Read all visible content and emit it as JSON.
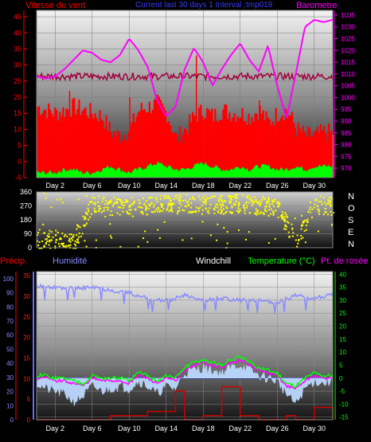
{
  "colors": {
    "wind": "#ff0000",
    "gust": "#ff0000",
    "baro": "#ff00ff",
    "dir": "#ffff00",
    "humidity": "#8a8aff",
    "precip": "#cc0000",
    "temp": "#00ff00",
    "dew": "#ff00ff",
    "windchill": "#ffffff",
    "winddir_ref": "#a0003a"
  },
  "chart_data": [
    {
      "type": "area",
      "panel": "wind_baro",
      "title": "Current last 30 days 1 Interval ;tmp018",
      "left_axis_label": "Vitesse du vent",
      "right_axis_label": "Barometre",
      "x_ticks": [
        "Day 2",
        "Day 6",
        "Day 10",
        "Day 14",
        "Day 18",
        "Day 22",
        "Day 26",
        "Day 30"
      ],
      "left_ticks": [
        -5,
        0,
        5,
        10,
        15,
        20,
        25,
        30,
        35,
        40,
        45
      ],
      "right_ticks": [
        970,
        975,
        980,
        985,
        990,
        995,
        1000,
        1005,
        1010,
        1015,
        1020,
        1025,
        1030,
        1035
      ],
      "ylim_left": [
        -5,
        47
      ],
      "ylim_right": [
        966,
        1037
      ],
      "x_range_days": [
        0,
        32
      ],
      "series": [
        {
          "name": "Barometre",
          "axis": "right",
          "x": [
            0,
            1,
            2,
            3,
            4,
            5,
            6,
            7,
            8,
            9,
            10,
            11,
            12,
            13,
            14,
            15,
            16,
            17,
            18,
            19,
            20,
            21,
            22,
            23,
            24,
            25,
            26,
            27,
            28,
            29,
            30,
            31,
            32
          ],
          "values": [
            1009,
            1008,
            1009,
            1012,
            1016,
            1020,
            1019,
            1016,
            1015,
            1018,
            1025,
            1020,
            1013,
            999,
            992,
            996,
            1012,
            1021,
            1015,
            1005,
            1012,
            1018,
            1023,
            1016,
            1011,
            1022,
            1005,
            991,
            1010,
            1030,
            1033,
            1032,
            1033
          ]
        },
        {
          "name": "Vitesse du vent",
          "axis": "left",
          "x": [
            0,
            1,
            2,
            3,
            4,
            5,
            6,
            7,
            8,
            9,
            10,
            11,
            12,
            13,
            14,
            15,
            16,
            17,
            18,
            19,
            20,
            21,
            22,
            23,
            24,
            25,
            26,
            27,
            28,
            29,
            30,
            31,
            32
          ],
          "values": [
            1,
            1,
            1,
            2,
            2,
            1,
            1,
            2,
            3,
            2,
            1,
            2,
            3,
            4,
            3,
            2,
            2,
            3,
            4,
            3,
            2,
            2,
            3,
            2,
            3,
            3,
            2,
            2,
            3,
            2,
            3,
            3,
            3
          ]
        },
        {
          "name": "Rafale",
          "axis": "left",
          "x": [
            0,
            1,
            2,
            3,
            4,
            5,
            6,
            7,
            8,
            9,
            10,
            11,
            12,
            13,
            14,
            15,
            16,
            17,
            18,
            19,
            20,
            21,
            22,
            23,
            24,
            25,
            26,
            27,
            28,
            29,
            30,
            31,
            32
          ],
          "values": [
            17,
            16,
            15,
            16,
            17,
            16,
            15,
            14,
            9,
            8,
            10,
            16,
            17,
            18,
            15,
            7,
            10,
            14,
            16,
            14,
            16,
            15,
            15,
            14,
            16,
            12,
            15,
            16,
            10,
            8,
            8,
            9,
            9
          ]
        }
      ]
    },
    {
      "type": "scatter",
      "panel": "wind_direction",
      "right_labels": [
        "N",
        "O",
        "S",
        "E",
        "N"
      ],
      "left_ticks": [
        0,
        90,
        180,
        270,
        360
      ],
      "ylim": [
        0,
        360
      ],
      "series": [
        {
          "name": "Direction",
          "x": [
            0,
            2,
            4,
            6,
            8,
            10,
            12,
            14,
            16,
            18,
            20,
            22,
            24,
            26,
            28,
            30,
            32
          ],
          "values": [
            45,
            60,
            40,
            280,
            270,
            265,
            275,
            300,
            290,
            285,
            280,
            290,
            275,
            260,
            40,
            280,
            270
          ]
        }
      ]
    },
    {
      "type": "line",
      "panel": "temperature_humidity",
      "labels": {
        "precip": "Précip.",
        "humidity": "Humidité",
        "windchill": "Windchill",
        "temperature": "Temperature (°C)",
        "dewpoint": "Pt. de rosée"
      },
      "x_ticks": [
        "Day 2",
        "Day 6",
        "Day 10",
        "Day 14",
        "Day 18",
        "Day 22",
        "Day 26",
        "Day 30"
      ],
      "left_ticks": [
        0,
        10,
        20,
        30,
        40,
        50,
        60,
        70,
        80,
        90,
        100
      ],
      "mid_ticks": [
        0,
        5,
        10,
        15,
        20,
        25,
        30,
        35
      ],
      "right_ticks": [
        -15,
        -10,
        -5,
        0,
        5,
        10,
        15,
        20,
        25,
        30,
        35,
        40
      ],
      "ylim_left": [
        0,
        105
      ],
      "ylim_mid": [
        0,
        36
      ],
      "ylim_right": [
        -16,
        41
      ],
      "series": [
        {
          "name": "Humidité",
          "axis": "left",
          "x": [
            0,
            2,
            4,
            6,
            8,
            10,
            12,
            14,
            16,
            18,
            20,
            22,
            24,
            26,
            28,
            30,
            32
          ],
          "values": [
            95,
            94,
            93,
            94,
            92,
            90,
            86,
            84,
            88,
            84,
            86,
            85,
            84,
            83,
            88,
            86,
            89
          ]
        },
        {
          "name": "Temperature (°C)",
          "axis": "right",
          "x": [
            0,
            1,
            2,
            3,
            4,
            5,
            6,
            7,
            8,
            9,
            10,
            11,
            12,
            13,
            14,
            15,
            16,
            17,
            18,
            19,
            20,
            21,
            22,
            23,
            24,
            25,
            26,
            27,
            28,
            29,
            30,
            31,
            32
          ],
          "values": [
            1,
            1,
            0,
            0,
            -1,
            -2,
            1,
            0,
            0,
            0,
            -1,
            2,
            1,
            -1,
            1,
            0,
            4,
            6,
            7,
            6,
            5,
            7,
            8,
            6,
            4,
            3,
            2,
            -2,
            -3,
            0,
            2,
            1,
            1
          ]
        },
        {
          "name": "Pt. de rosée",
          "axis": "right",
          "x": [
            0,
            1,
            2,
            3,
            4,
            5,
            6,
            7,
            8,
            9,
            10,
            11,
            12,
            13,
            14,
            15,
            16,
            17,
            18,
            19,
            20,
            21,
            22,
            23,
            24,
            25,
            26,
            27,
            28,
            29,
            30,
            31,
            32
          ],
          "values": [
            0,
            0,
            -1,
            -1,
            -2,
            -3,
            0,
            -1,
            -1,
            -1,
            -2,
            1,
            0,
            -2,
            0,
            -1,
            3,
            5,
            6,
            5,
            4,
            6,
            7,
            5,
            3,
            2,
            1,
            -3,
            -4,
            -1,
            1,
            0,
            0
          ]
        },
        {
          "name": "Windchill",
          "axis": "right",
          "x": [
            0,
            1,
            2,
            3,
            4,
            5,
            6,
            7,
            8,
            9,
            10,
            11,
            12,
            13,
            14,
            15,
            16,
            17,
            18,
            19,
            20,
            21,
            22,
            23,
            24,
            25,
            26,
            27,
            28,
            29,
            30,
            31,
            32
          ],
          "values": [
            -2,
            -4,
            -5,
            -6,
            -9,
            -7,
            -3,
            -5,
            -4,
            -3,
            -4,
            -1,
            -3,
            -6,
            -3,
            -4,
            2,
            3,
            4,
            3,
            2,
            4,
            5,
            3,
            1,
            0,
            -1,
            -6,
            -10,
            -4,
            -1,
            -2,
            -1
          ]
        },
        {
          "name": "Précip.",
          "axis": "mid",
          "x": [
            0,
            2,
            4,
            6,
            8,
            10,
            12,
            14,
            15,
            16,
            18,
            20,
            22,
            24,
            26,
            27,
            28,
            30,
            32
          ],
          "values": [
            0,
            0,
            0,
            0,
            1,
            1,
            2,
            2,
            7,
            0,
            1,
            8,
            1,
            0,
            0,
            1,
            0,
            3,
            0
          ]
        }
      ]
    }
  ]
}
